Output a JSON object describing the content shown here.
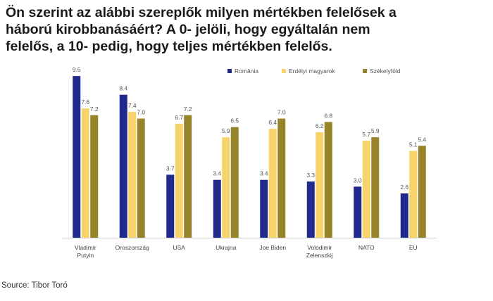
{
  "title_lines": [
    "Ön szerint az alábbi szereplők milyen mértékben felelősek a",
    "háború kirobbanásáért? A 0- jelöli, hogy egyáltalán nem",
    "felelős, a 10- pedig, hogy teljes mértékben felelős."
  ],
  "source": "Source: Tibor Toró",
  "chart_data": {
    "type": "bar",
    "categories": [
      [
        "Vladimir",
        "Putyin"
      ],
      [
        "Oroszország"
      ],
      [
        "USA"
      ],
      [
        "Ukrajna"
      ],
      [
        "Joe Biden"
      ],
      [
        "Volodimir",
        "Zelenszkij"
      ],
      [
        "NATO"
      ],
      [
        "EU"
      ]
    ],
    "series": [
      {
        "name": "România",
        "color": "#1f2a8c",
        "values": [
          9.5,
          8.4,
          3.7,
          3.4,
          3.4,
          3.3,
          3.0,
          2.6
        ]
      },
      {
        "name": "Erdélyi magyarok",
        "color": "#f6d36b",
        "values": [
          7.6,
          7.4,
          6.7,
          5.9,
          6.4,
          6.2,
          5.7,
          5.1
        ]
      },
      {
        "name": "Székelyföld",
        "color": "#97832a",
        "values": [
          7.2,
          7.0,
          7.2,
          6.5,
          7.0,
          6.8,
          5.9,
          5.4
        ]
      }
    ],
    "ylim": [
      0,
      10
    ],
    "grid": false,
    "legend": "top-right",
    "data_labels": true
  }
}
